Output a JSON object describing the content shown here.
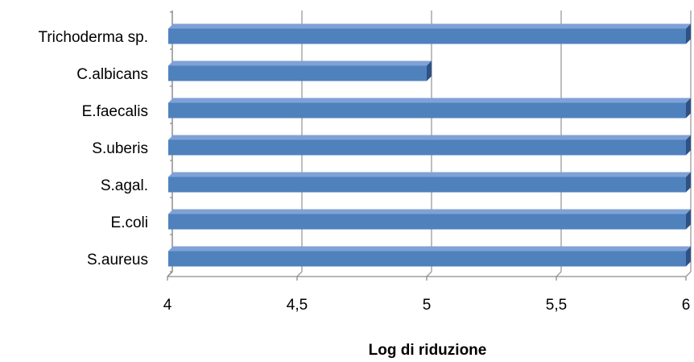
{
  "chart_data": {
    "type": "bar",
    "orientation": "horizontal",
    "style": "3d",
    "categories": [
      "S.aureus",
      "E.coli",
      "S.agal.",
      "S.uberis",
      "E.faecalis",
      "C.albicans",
      "Trichoderma sp."
    ],
    "values": [
      6,
      6,
      6,
      6,
      6,
      5,
      6
    ],
    "title": "",
    "xlabel": "Log di riduzione",
    "ylabel": "",
    "xlim": [
      4,
      6
    ],
    "x_ticks": [
      4,
      4.5,
      5,
      5.5,
      6
    ],
    "x_tick_labels": [
      "4",
      "4,5",
      "5",
      "5,5",
      "6"
    ],
    "grid": "vertical",
    "legend": "none",
    "colors": {
      "bar_front": "#4F81BD",
      "bar_top": "#7FA1D6",
      "bar_side": "#2E5286",
      "gridline": "#9A9A9A",
      "axis": "#8C8C8C"
    }
  }
}
